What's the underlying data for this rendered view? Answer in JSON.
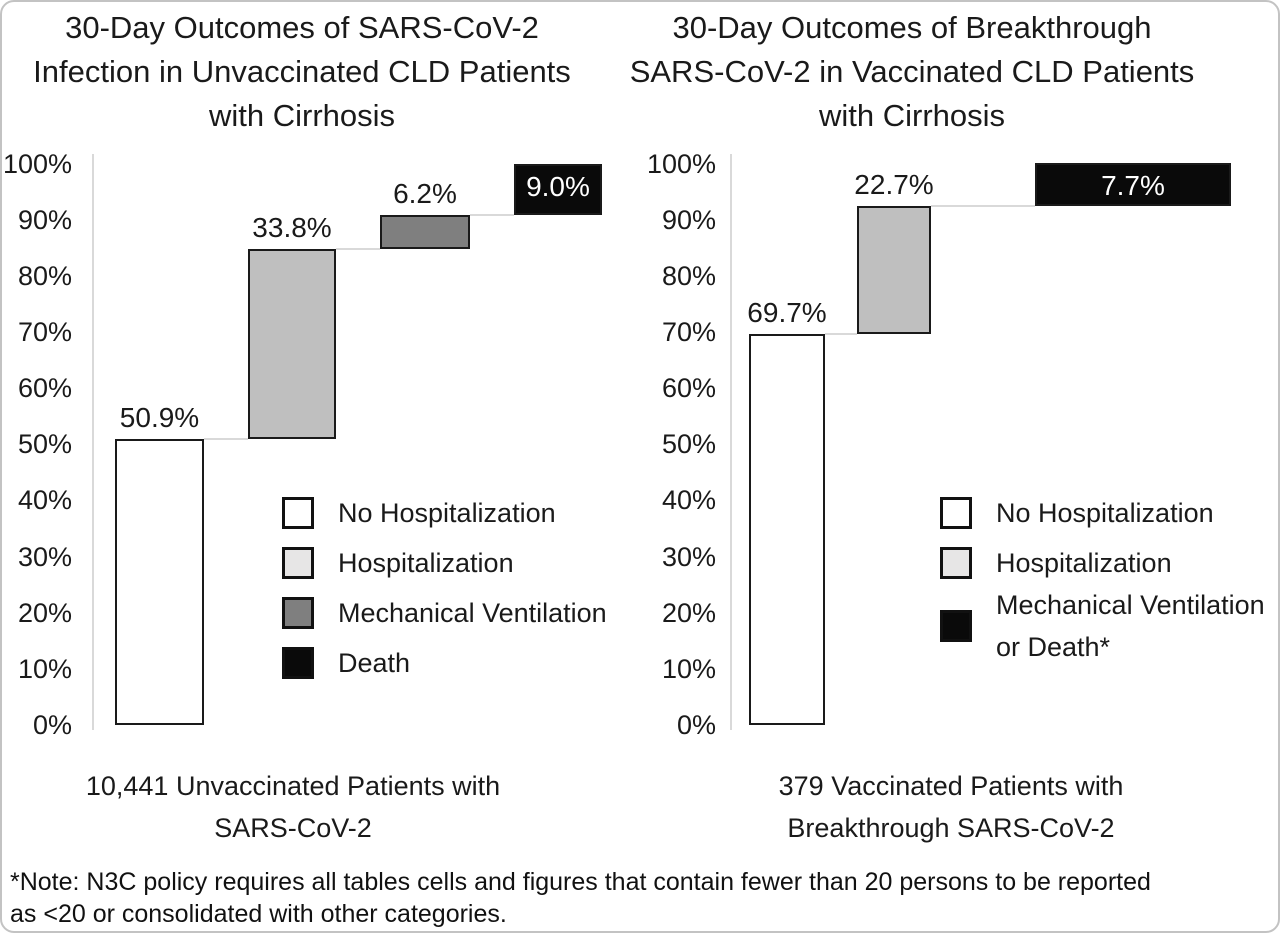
{
  "figure": {
    "footnote_lines": [
      "*Note: N3C policy requires all tables cells and figures that contain fewer than 20 persons to be reported",
      "as <20 or consolidated with other categories."
    ],
    "colors": {
      "axis": "#d9d9d9",
      "bar_border": "#1a1a1a",
      "text": "#1a1a1a",
      "inside_label": "#ffffff",
      "card_border": "#c3c3c3"
    }
  },
  "chart_data": [
    {
      "type": "bar",
      "subtype": "waterfall",
      "title": "30-Day Outcomes of SARS-CoV-2 Infection in Unvaccinated CLD Patients with Cirrhosis",
      "title_lines": [
        "30-Day Outcomes of SARS-CoV-2",
        "Infection in Unvaccinated CLD Patients",
        "with Cirrhosis"
      ],
      "xlabel": "10,441 Unvaccinated Patients with SARS-CoV-2",
      "xlabel_lines": [
        "10,441 Unvaccinated Patients with",
        "SARS-CoV-2"
      ],
      "ylabel": "",
      "ylim": [
        0,
        100
      ],
      "ytick_step": 10,
      "yticks": [
        "0%",
        "10%",
        "20%",
        "30%",
        "40%",
        "50%",
        "60%",
        "70%",
        "80%",
        "90%",
        "100%"
      ],
      "grid": false,
      "categories": [
        "No Hospitalization",
        "Hospitalization",
        "Mechanical Ventilation",
        "Death"
      ],
      "values": [
        50.9,
        33.8,
        6.2,
        9.0
      ],
      "cumulative_start": [
        0,
        50.9,
        84.7,
        90.9
      ],
      "bar_labels": [
        "50.9%",
        "33.8%",
        "6.2%",
        "9.0%"
      ],
      "bar_label_position": [
        "above",
        "above",
        "above",
        "inside"
      ],
      "bar_colors": [
        "#ffffff",
        "#bfbfbf",
        "#7f7f7f",
        "#0a0a0a"
      ],
      "legend": {
        "position": "inside-right",
        "entries": [
          {
            "label": "No Hospitalization",
            "swatch_color": "#ffffff"
          },
          {
            "label": "Hospitalization",
            "swatch_color": "#e7e6e6"
          },
          {
            "label": "Mechanical Ventilation",
            "swatch_color": "#7f7f7f"
          },
          {
            "label": "Death",
            "swatch_color": "#0a0a0a"
          }
        ]
      }
    },
    {
      "type": "bar",
      "subtype": "waterfall",
      "title": "30-Day Outcomes of Breakthrough SARS-CoV-2 in Vaccinated CLD Patients with Cirrhosis",
      "title_lines": [
        "30-Day Outcomes of Breakthrough",
        "SARS-CoV-2 in Vaccinated CLD Patients",
        "with Cirrhosis"
      ],
      "xlabel": "379 Vaccinated Patients with Breakthrough SARS-CoV-2",
      "xlabel_lines": [
        "379 Vaccinated Patients with",
        "Breakthrough SARS-CoV-2"
      ],
      "ylabel": "",
      "ylim": [
        0,
        100
      ],
      "ytick_step": 10,
      "yticks": [
        "0%",
        "10%",
        "20%",
        "30%",
        "40%",
        "50%",
        "60%",
        "70%",
        "80%",
        "90%",
        "100%"
      ],
      "grid": false,
      "categories": [
        "No Hospitalization",
        "Hospitalization",
        "Mechanical Ventilation or Death*"
      ],
      "values": [
        69.7,
        22.7,
        7.7
      ],
      "cumulative_start": [
        0,
        69.7,
        92.4
      ],
      "bar_labels": [
        "69.7%",
        "22.7%",
        "7.7%"
      ],
      "bar_label_position": [
        "above",
        "above",
        "inside"
      ],
      "bar_colors": [
        "#ffffff",
        "#bfbfbf",
        "#0a0a0a"
      ],
      "legend": {
        "position": "inside-right",
        "entries": [
          {
            "label": "No Hospitalization",
            "swatch_color": "#ffffff"
          },
          {
            "label": "Hospitalization",
            "swatch_color": "#e7e6e6"
          },
          {
            "label": "Mechanical Ventilation or Death*",
            "swatch_color": "#0a0a0a"
          }
        ]
      }
    }
  ]
}
